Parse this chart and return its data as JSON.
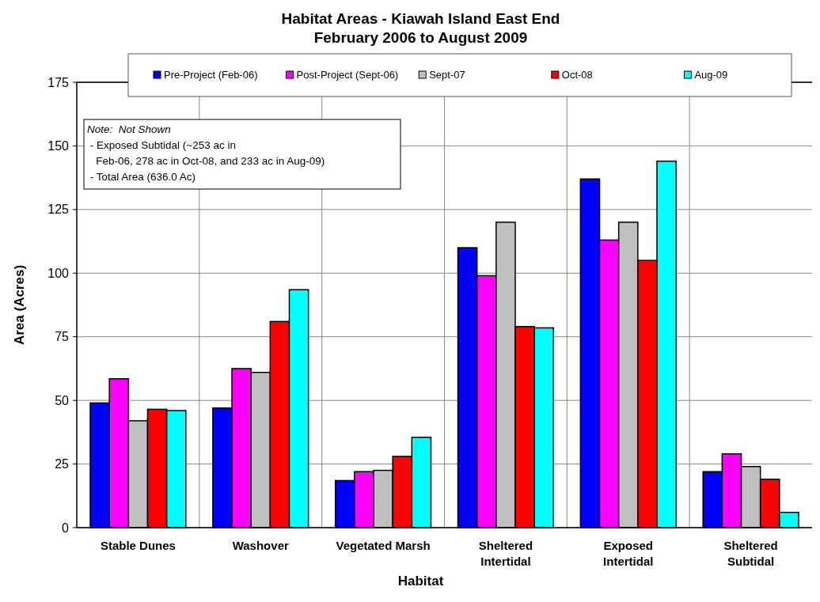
{
  "chart_data": {
    "type": "bar",
    "title": "Habitat Areas - Kiawah Island East End",
    "subtitle": "February 2006 to August 2009",
    "xlabel": "Habitat",
    "ylabel": "Area (Acres)",
    "categories": [
      "Stable Dunes",
      "Washover",
      "Vegetated Marsh",
      "Sheltered Intertidal",
      "Exposed Intertidal",
      "Sheltered Subtidal"
    ],
    "series": [
      {
        "name": "Pre-Project (Feb-06)",
        "color": "#0000ff",
        "values": [
          49,
          47,
          18.5,
          110,
          137,
          22
        ]
      },
      {
        "name": "Post-Project (Sept-06)",
        "color": "#ff00ff",
        "values": [
          58.5,
          62.5,
          22,
          99,
          113,
          29
        ]
      },
      {
        "name": "Sept-07",
        "color": "#c0c0c0",
        "values": [
          42,
          61,
          22.5,
          120,
          120,
          24
        ]
      },
      {
        "name": "Oct-08",
        "color": "#ff0000",
        "values": [
          46.5,
          81,
          28,
          79,
          105,
          19
        ]
      },
      {
        "name": "Aug-09",
        "color": "#00ffff",
        "values": [
          46,
          93.5,
          35.5,
          78.5,
          144,
          6
        ]
      }
    ],
    "ylim": [
      0,
      175
    ],
    "yticks": [
      0,
      25,
      50,
      75,
      100,
      125,
      150,
      175
    ],
    "grid": true,
    "legend": "top",
    "annotations": [
      "Note:  Not Shown",
      " - Exposed Subtidal (~253 ac in",
      "   Feb-06, 278 ac in Oct-08, and 233 ac in Aug-09)",
      " - Total Area (636.0 Ac)"
    ]
  }
}
